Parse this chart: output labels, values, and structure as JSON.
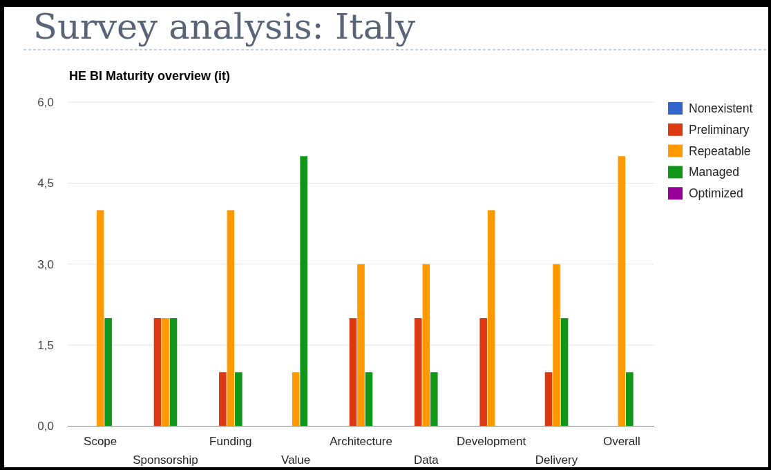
{
  "chart_data": {
    "type": "bar",
    "title": "Survey analysis: Italy",
    "subtitle": "HE BI Maturity overview (it)",
    "categories": [
      "Scope",
      "Sponsorship",
      "Funding",
      "Value",
      "Architecture",
      "Data",
      "Development",
      "Delivery",
      "Overall"
    ],
    "series": [
      {
        "name": "Nonexistent",
        "color": "#3366cc",
        "values": [
          0,
          0,
          0,
          0,
          0,
          0,
          0,
          0,
          0
        ]
      },
      {
        "name": "Preliminary",
        "color": "#dc3912",
        "values": [
          0,
          2,
          1,
          0,
          2,
          2,
          2,
          1,
          0
        ]
      },
      {
        "name": "Repeatable",
        "color": "#ff9900",
        "values": [
          4,
          2,
          4,
          1,
          3,
          3,
          4,
          3,
          5
        ]
      },
      {
        "name": "Managed",
        "color": "#109618",
        "values": [
          2,
          2,
          1,
          5,
          1,
          1,
          0,
          2,
          1
        ]
      },
      {
        "name": "Optimized",
        "color": "#990099",
        "values": [
          0,
          0,
          0,
          0,
          0,
          0,
          0,
          0,
          0
        ]
      }
    ],
    "ylim": [
      0,
      6
    ],
    "yticks": [
      {
        "value": 0,
        "label": "0,0"
      },
      {
        "value": 1.5,
        "label": "1,5"
      },
      {
        "value": 3,
        "label": "3,0"
      },
      {
        "value": 4.5,
        "label": "4,5"
      },
      {
        "value": 6,
        "label": "6,0"
      }
    ],
    "grid": "y",
    "legend": "top right"
  }
}
